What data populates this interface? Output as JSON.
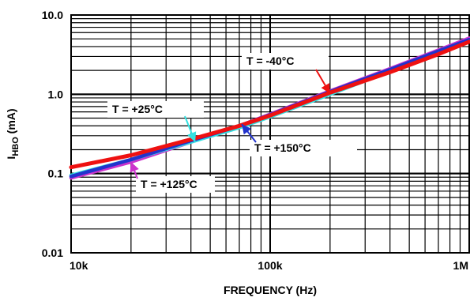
{
  "chart_data": {
    "type": "line",
    "title": "",
    "xlabel": "FREQUENCY (Hz)",
    "ylabel_main": "I",
    "ylabel_sub": "HBO",
    "ylabel_unit": " (mA)",
    "x_scale": "log",
    "y_scale": "log",
    "xlim": [
      10000,
      1000000
    ],
    "ylim": [
      0.01,
      10
    ],
    "grid": true,
    "x_ticks": [
      {
        "value": 10000,
        "label": "10k"
      },
      {
        "value": 100000,
        "label": "100k"
      },
      {
        "value": 1000000,
        "label": "1M"
      }
    ],
    "y_ticks": [
      {
        "value": 0.01,
        "label": "0.01"
      },
      {
        "value": 0.1,
        "label": "0.1"
      },
      {
        "value": 1,
        "label": "1.0"
      },
      {
        "value": 10,
        "label": "10.0"
      }
    ],
    "series": [
      {
        "name": "T = +125°C",
        "color": "#cc33cc",
        "points": [
          [
            10000,
            0.088
          ],
          [
            20000,
            0.14
          ],
          [
            40000,
            0.25
          ],
          [
            70000,
            0.4
          ],
          [
            100000,
            0.56
          ],
          [
            200000,
            1.1
          ],
          [
            400000,
            2.1
          ],
          [
            700000,
            3.6
          ],
          [
            1000000,
            5.1
          ]
        ]
      },
      {
        "name": "T = +25°C",
        "color": "#33e0e0",
        "points": [
          [
            10000,
            0.095
          ],
          [
            20000,
            0.15
          ],
          [
            40000,
            0.25
          ],
          [
            70000,
            0.38
          ],
          [
            100000,
            0.52
          ],
          [
            200000,
            1.0
          ],
          [
            400000,
            1.95
          ],
          [
            700000,
            3.4
          ],
          [
            1000000,
            4.8
          ]
        ]
      },
      {
        "name": "T = +150°C",
        "color": "#2233cc",
        "points": [
          [
            10000,
            0.092
          ],
          [
            20000,
            0.15
          ],
          [
            40000,
            0.26
          ],
          [
            70000,
            0.4
          ],
          [
            100000,
            0.55
          ],
          [
            200000,
            1.08
          ],
          [
            400000,
            2.05
          ],
          [
            700000,
            3.5
          ],
          [
            1000000,
            4.9
          ]
        ]
      },
      {
        "name": "T = -40°C",
        "color": "#ee1111",
        "points": [
          [
            10000,
            0.12
          ],
          [
            20000,
            0.17
          ],
          [
            40000,
            0.27
          ],
          [
            70000,
            0.4
          ],
          [
            100000,
            0.54
          ],
          [
            200000,
            1.05
          ],
          [
            400000,
            1.9
          ],
          [
            700000,
            3.2
          ],
          [
            1000000,
            4.6
          ]
        ]
      }
    ],
    "annotations": [
      {
        "text": "T = -40°C",
        "series": 3,
        "at": [
          200000,
          1.02
        ]
      },
      {
        "text": "T = +25°C",
        "series": 1,
        "at": [
          42000,
          0.25
        ]
      },
      {
        "text": "T = +150°C",
        "series": 2,
        "at": [
          72000,
          0.42
        ]
      },
      {
        "text": "T = +125°C",
        "series": 0,
        "at": [
          20000,
          0.14
        ]
      }
    ]
  }
}
